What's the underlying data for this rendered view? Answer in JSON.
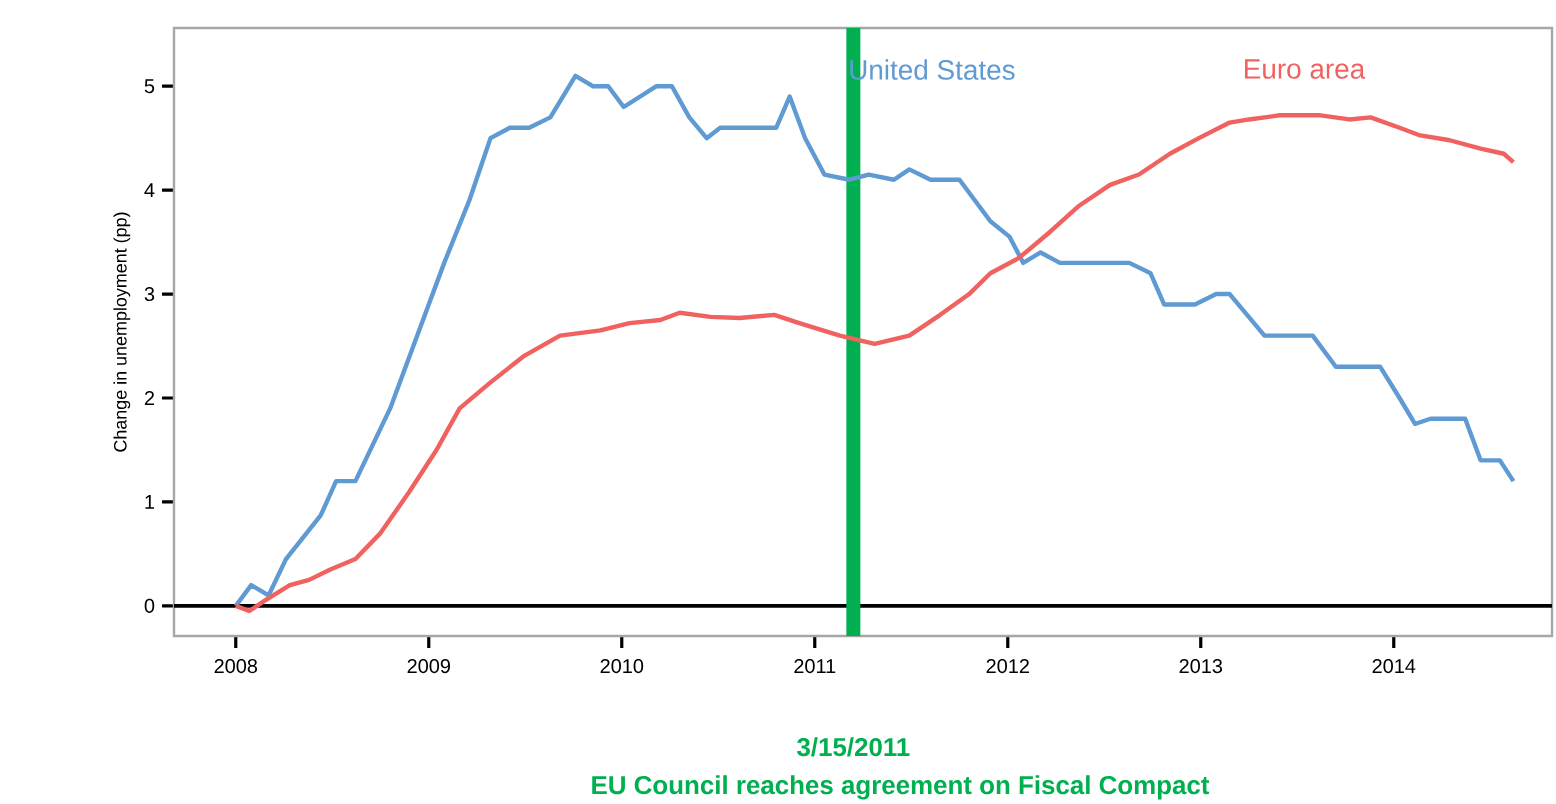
{
  "chart_data": {
    "type": "line",
    "ylabel": "Change in unemployment (pp)",
    "xlim": [
      2007.68,
      2014.82
    ],
    "ylim": [
      -0.29,
      5.56
    ],
    "xticks": [
      2008,
      2009,
      2010,
      2011,
      2012,
      2013,
      2014
    ],
    "yticks": [
      0,
      1,
      2,
      3,
      4,
      5
    ],
    "grid": false,
    "legend": false,
    "marker": "none",
    "line_style": "solid",
    "series": [
      {
        "name": "United States",
        "color": "#5f9ad3",
        "x": [
          2008.0,
          2008.08,
          2008.17,
          2008.26,
          2008.44,
          2008.52,
          2008.62,
          2008.8,
          2008.95,
          2009.08,
          2009.21,
          2009.32,
          2009.42,
          2009.52,
          2009.63,
          2009.76,
          2009.85,
          2009.93,
          2010.01,
          2010.18,
          2010.26,
          2010.35,
          2010.44,
          2010.51,
          2010.8,
          2010.87,
          2010.95,
          2011.05,
          2011.18,
          2011.28,
          2011.41,
          2011.49,
          2011.6,
          2011.75,
          2011.91,
          2012.01,
          2012.08,
          2012.17,
          2012.27,
          2012.63,
          2012.74,
          2012.81,
          2012.97,
          2013.08,
          2013.15,
          2013.33,
          2013.58,
          2013.7,
          2013.93,
          2014.03,
          2014.11,
          2014.19,
          2014.37,
          2014.45,
          2014.55,
          2014.62
        ],
        "values": [
          0,
          0.2,
          0.1,
          0.45,
          0.87,
          1.2,
          1.2,
          1.9,
          2.65,
          3.3,
          3.9,
          4.5,
          4.6,
          4.6,
          4.7,
          5.1,
          5.0,
          5.0,
          4.8,
          5.0,
          5.0,
          4.7,
          4.5,
          4.6,
          4.6,
          4.9,
          4.5,
          4.15,
          4.1,
          4.15,
          4.1,
          4.2,
          4.1,
          4.1,
          3.7,
          3.55,
          3.3,
          3.4,
          3.3,
          3.3,
          3.2,
          2.9,
          2.9,
          3.0,
          3.0,
          2.6,
          2.6,
          2.3,
          2.3,
          2.0,
          1.75,
          1.8,
          1.8,
          1.4,
          1.4,
          1.2
        ]
      },
      {
        "name": "Euro area",
        "color": "#f0625f",
        "x": [
          2008.0,
          2008.07,
          2008.15,
          2008.28,
          2008.38,
          2008.49,
          2008.62,
          2008.75,
          2008.9,
          2009.04,
          2009.16,
          2009.32,
          2009.49,
          2009.68,
          2009.89,
          2010.04,
          2010.2,
          2010.3,
          2010.46,
          2010.61,
          2010.79,
          2010.92,
          2011.13,
          2011.31,
          2011.49,
          2011.65,
          2011.8,
          2011.91,
          2012.06,
          2012.22,
          2012.37,
          2012.53,
          2012.68,
          2012.84,
          2012.99,
          2013.15,
          2013.25,
          2013.41,
          2013.62,
          2013.77,
          2013.88,
          2014.03,
          2014.13,
          2014.29,
          2014.45,
          2014.57,
          2014.62
        ],
        "values": [
          0,
          -0.05,
          0.05,
          0.2,
          0.25,
          0.35,
          0.45,
          0.7,
          1.1,
          1.5,
          1.9,
          2.15,
          2.4,
          2.6,
          2.65,
          2.72,
          2.75,
          2.82,
          2.78,
          2.77,
          2.8,
          2.72,
          2.6,
          2.52,
          2.6,
          2.8,
          3.0,
          3.2,
          3.35,
          3.6,
          3.85,
          4.05,
          4.15,
          4.35,
          4.5,
          4.65,
          4.68,
          4.72,
          4.72,
          4.68,
          4.7,
          4.6,
          4.53,
          4.48,
          4.4,
          4.35,
          4.27
        ]
      }
    ],
    "ref_lines": [
      {
        "axis": "y",
        "value": 0,
        "color": "#000000"
      },
      {
        "axis": "x",
        "value": 2011.2,
        "label": "3/15/2011",
        "color": "#00b050"
      }
    ],
    "annotations": [
      "EU Council reaches agreement on Fiscal Compact"
    ]
  }
}
